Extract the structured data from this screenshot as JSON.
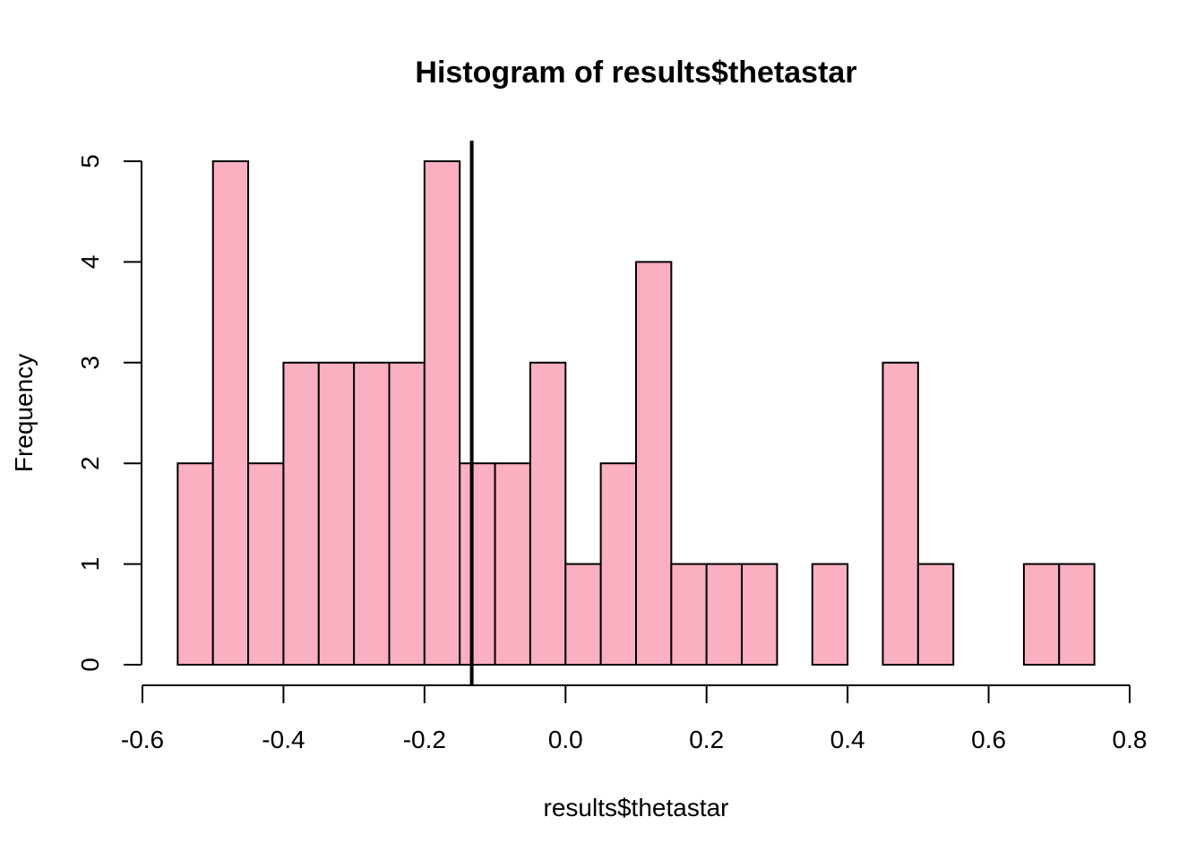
{
  "chart_data": {
    "type": "bar",
    "title": "Histogram of results$thetastar",
    "xlabel": "results$thetastar",
    "ylabel": "Frequency",
    "bin_width": 0.05,
    "bins": [
      {
        "start": -0.55,
        "end": -0.5,
        "count": 2
      },
      {
        "start": -0.5,
        "end": -0.45,
        "count": 5
      },
      {
        "start": -0.45,
        "end": -0.4,
        "count": 2
      },
      {
        "start": -0.4,
        "end": -0.35,
        "count": 3
      },
      {
        "start": -0.35,
        "end": -0.3,
        "count": 3
      },
      {
        "start": -0.3,
        "end": -0.25,
        "count": 3
      },
      {
        "start": -0.25,
        "end": -0.2,
        "count": 3
      },
      {
        "start": -0.2,
        "end": -0.15,
        "count": 5
      },
      {
        "start": -0.15,
        "end": -0.1,
        "count": 2
      },
      {
        "start": -0.1,
        "end": -0.05,
        "count": 2
      },
      {
        "start": -0.05,
        "end": 0.0,
        "count": 3
      },
      {
        "start": 0.0,
        "end": 0.05,
        "count": 1
      },
      {
        "start": 0.05,
        "end": 0.1,
        "count": 2
      },
      {
        "start": 0.1,
        "end": 0.15,
        "count": 4
      },
      {
        "start": 0.15,
        "end": 0.2,
        "count": 1
      },
      {
        "start": 0.2,
        "end": 0.25,
        "count": 1
      },
      {
        "start": 0.25,
        "end": 0.3,
        "count": 1
      },
      {
        "start": 0.3,
        "end": 0.35,
        "count": 0
      },
      {
        "start": 0.35,
        "end": 0.4,
        "count": 1
      },
      {
        "start": 0.4,
        "end": 0.45,
        "count": 0
      },
      {
        "start": 0.45,
        "end": 0.5,
        "count": 3
      },
      {
        "start": 0.5,
        "end": 0.55,
        "count": 1
      },
      {
        "start": 0.55,
        "end": 0.6,
        "count": 0
      },
      {
        "start": 0.6,
        "end": 0.65,
        "count": 0
      },
      {
        "start": 0.65,
        "end": 0.7,
        "count": 1
      },
      {
        "start": 0.7,
        "end": 0.75,
        "count": 1
      }
    ],
    "xlim": [
      -0.6,
      0.8
    ],
    "ylim": [
      0,
      5
    ],
    "x_ticks": [
      -0.6,
      -0.4,
      -0.2,
      0.0,
      0.2,
      0.4,
      0.6,
      0.8
    ],
    "x_tick_labels": [
      "-0.6",
      "-0.4",
      "-0.2",
      "0.0",
      "0.2",
      "0.4",
      "0.6",
      "0.8"
    ],
    "y_ticks": [
      0,
      1,
      2,
      3,
      4,
      5
    ],
    "y_tick_labels": [
      "0",
      "1",
      "2",
      "3",
      "4",
      "5"
    ],
    "reference_line": {
      "x": -0.133
    },
    "grid": false,
    "colors": {
      "bar_fill": "#fbb0c2",
      "bar_stroke": "#000000",
      "line": "#000000"
    }
  }
}
